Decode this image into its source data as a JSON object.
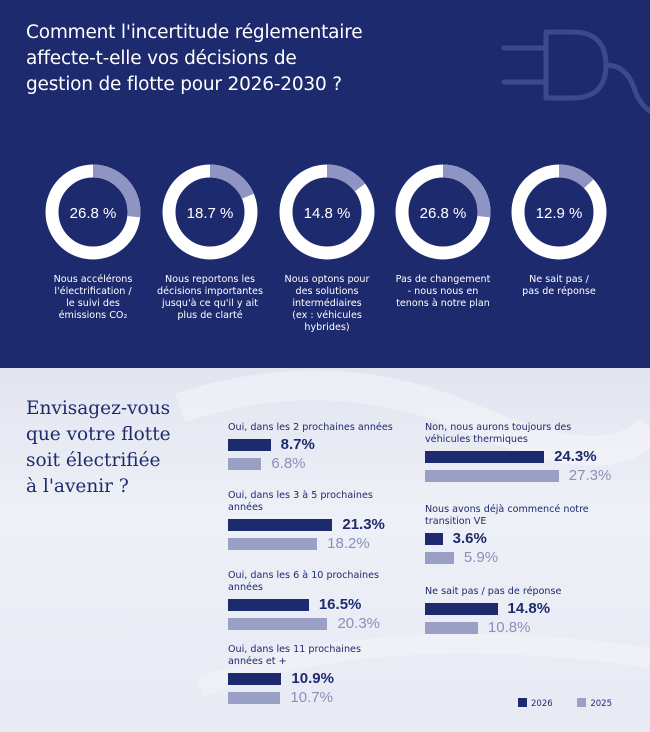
{
  "colors": {
    "navy": "#1e2a6e",
    "light": "#9a9fc6",
    "white": "#ffffff"
  },
  "header": {
    "title_lines": [
      "Comment l'incertitude réglementaire",
      "affecte-t-elle vos décisions de",
      "gestion de flotte pour 2026-2030 ?"
    ],
    "icon": "plug-icon"
  },
  "chart_data": [
    {
      "type": "pie",
      "title": "Comment l'incertitude réglementaire affecte-t-elle vos décisions de gestion de flotte pour 2026-2030 ?",
      "slices": [
        {
          "value": 26.8,
          "display": "26.8 %",
          "label_lines": [
            "Nous accélérons",
            "l'électrification /",
            "le suivi des",
            "émissions CO₂"
          ]
        },
        {
          "value": 18.7,
          "display": "18.7 %",
          "label_lines": [
            "Nous reportons les",
            "décisions importantes",
            "jusqu'à ce qu'il y ait",
            "plus de clarté"
          ]
        },
        {
          "value": 14.8,
          "display": "14.8 %",
          "label_lines": [
            "Nous optons pour",
            "des solutions",
            "intermédiaires",
            "(ex : véhicules",
            "hybrides)"
          ]
        },
        {
          "value": 26.8,
          "display": "26.8 %",
          "label_lines": [
            "Pas de changement",
            "- nous nous en",
            "tenons à notre plan"
          ]
        },
        {
          "value": 12.9,
          "display": "12.9 %",
          "label_lines": [
            "Ne sait pas /",
            "pas de réponse"
          ]
        }
      ]
    },
    {
      "type": "bar",
      "title_lines": [
        "Envisagez-vous",
        "que votre flotte",
        "soit électrifiée",
        "à l'avenir ?"
      ],
      "series": [
        {
          "name": "2026"
        },
        {
          "name": "2025"
        }
      ],
      "items": [
        {
          "label_lines": [
            "Oui, dans les 2 prochaines années"
          ],
          "v2026": 8.7,
          "v2025": 6.8,
          "d2026": "8.7%",
          "d2025": "6.8%"
        },
        {
          "label_lines": [
            "Oui, dans les 3 à 5 prochaines",
            "années"
          ],
          "v2026": 21.3,
          "v2025": 18.2,
          "d2026": "21.3%",
          "d2025": "18.2%"
        },
        {
          "label_lines": [
            "Oui, dans les 6 à 10 prochaines",
            "années"
          ],
          "v2026": 16.5,
          "v2025": 20.3,
          "d2026": "16.5%",
          "d2025": "20.3%"
        },
        {
          "label_lines": [
            "Oui, dans les 11 prochaines",
            "années et +"
          ],
          "v2026": 10.9,
          "v2025": 10.7,
          "d2026": "10.9%",
          "d2025": "10.7%"
        },
        {
          "label_lines": [
            "Non, nous aurons toujours des",
            "véhicules thermiques"
          ],
          "v2026": 24.3,
          "v2025": 27.3,
          "d2026": "24.3%",
          "d2025": "27.3%"
        },
        {
          "label_lines": [
            "Nous avons déjà commencé notre",
            "transition VE"
          ],
          "v2026": 3.6,
          "v2025": 5.9,
          "d2026": "3.6%",
          "d2025": "5.9%"
        },
        {
          "label_lines": [
            "Ne sait pas / pas de réponse"
          ],
          "v2026": 14.8,
          "v2025": 10.8,
          "d2026": "14.8%",
          "d2025": "10.8%"
        }
      ],
      "legend": [
        "2026",
        "2025"
      ],
      "legend_position": "bottom-right"
    }
  ]
}
